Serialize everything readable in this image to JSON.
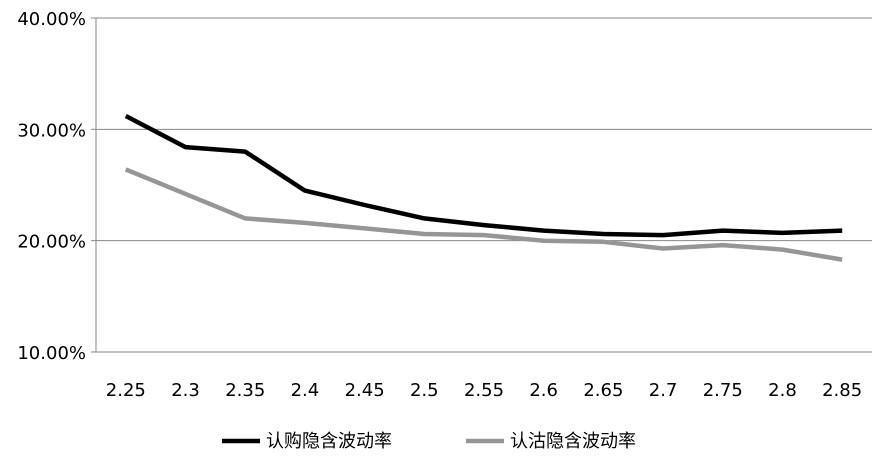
{
  "chart_data": {
    "type": "line",
    "title": "",
    "xlabel": "",
    "ylabel": "",
    "categories": [
      "2.25",
      "2.3",
      "2.35",
      "2.4",
      "2.45",
      "2.5",
      "2.55",
      "2.6",
      "2.65",
      "2.7",
      "2.75",
      "2.8",
      "2.85"
    ],
    "ylim": [
      10,
      40
    ],
    "yticks": [
      10,
      20,
      30,
      40
    ],
    "ytick_labels": [
      "10.00%",
      "20.00%",
      "30.00%",
      "40.00%"
    ],
    "grid": "horizontal",
    "legend_position": "bottom",
    "series": [
      {
        "name": "认购隐含波动率",
        "color": "#000000",
        "values": [
          31.2,
          28.4,
          28.0,
          24.5,
          23.2,
          22.0,
          21.4,
          20.9,
          20.6,
          20.5,
          20.9,
          20.7,
          20.9
        ]
      },
      {
        "name": "认沽隐含波动率",
        "color": "#969696",
        "values": [
          26.4,
          24.2,
          22.0,
          21.6,
          21.1,
          20.6,
          20.5,
          20.0,
          19.9,
          19.3,
          19.6,
          19.2,
          18.3
        ]
      }
    ]
  }
}
